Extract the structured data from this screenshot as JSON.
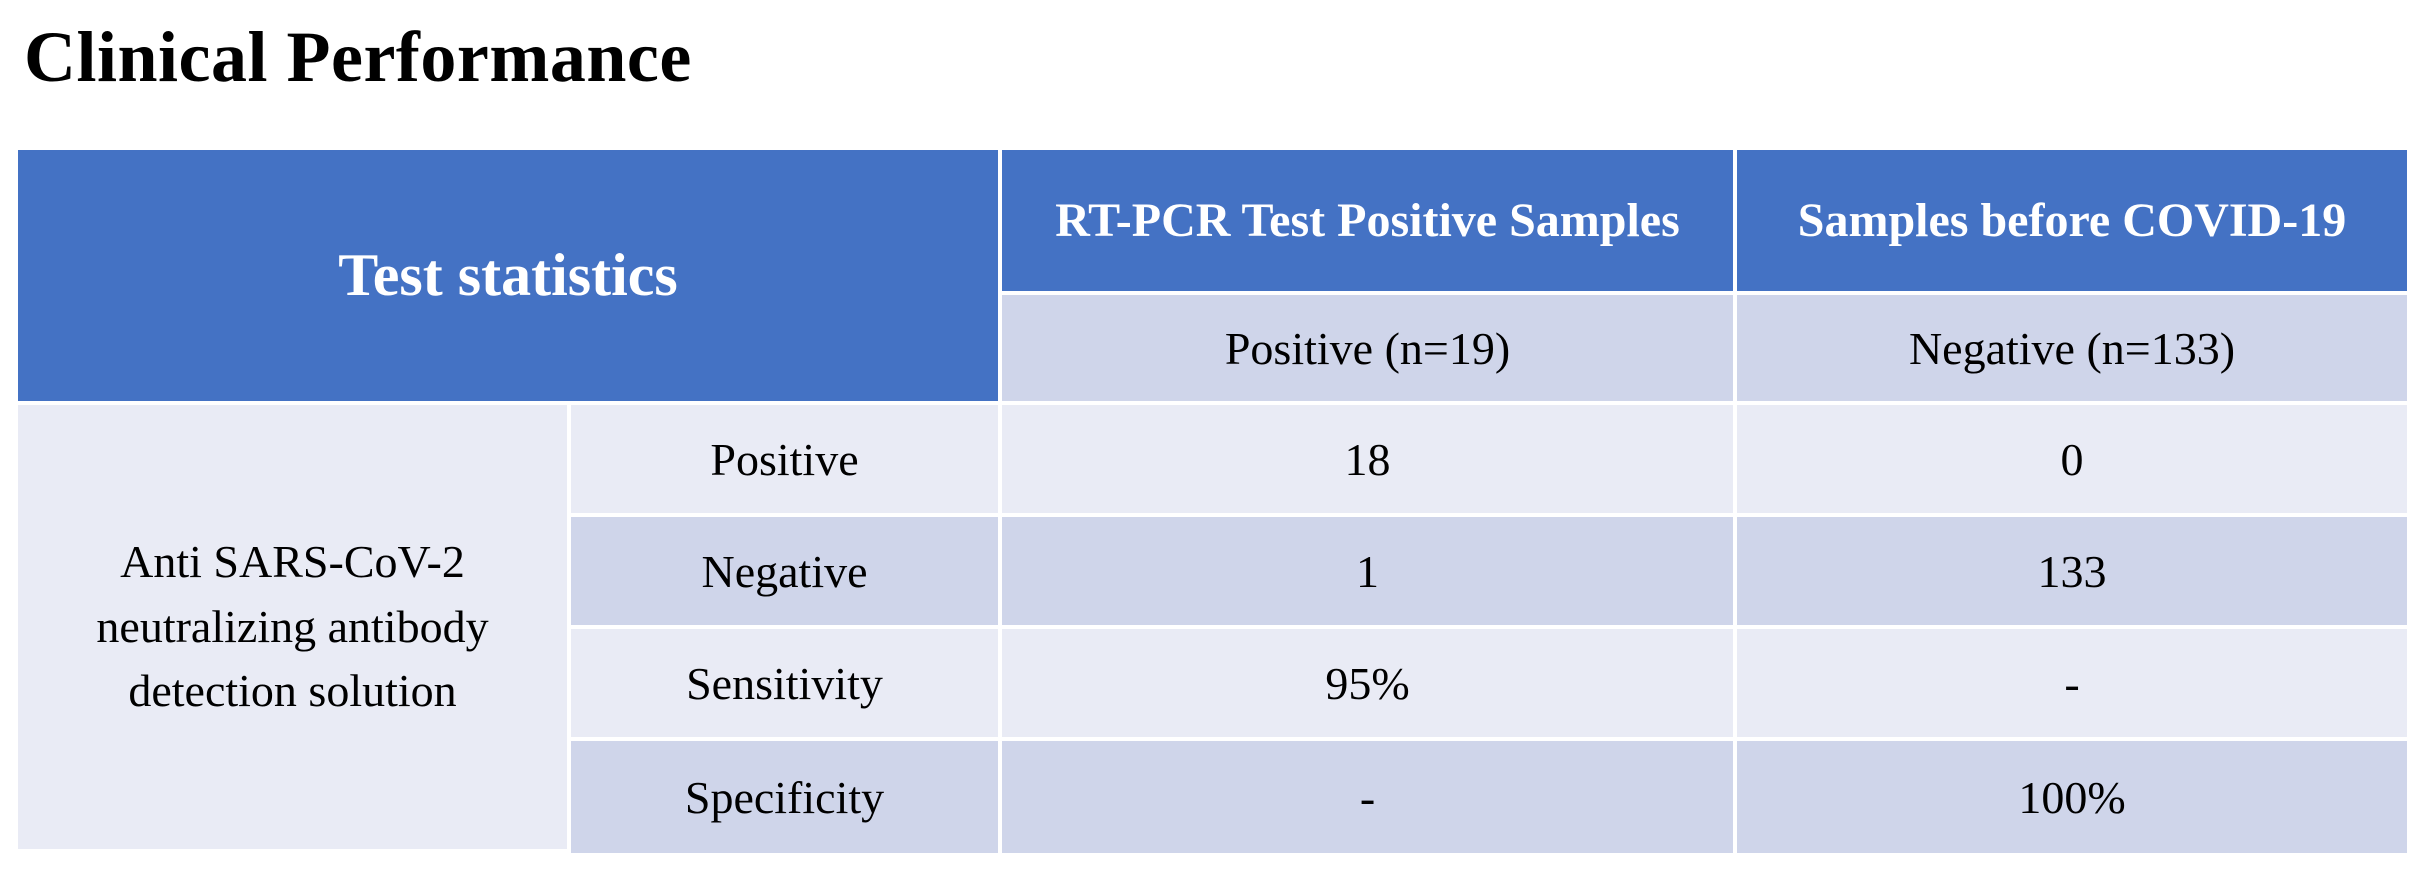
{
  "page": {
    "title": "Clinical Performance"
  },
  "table": {
    "header": {
      "main": "Test statistics",
      "col1": "RT-PCR Test Positive Samples",
      "col2": "Samples before COVID-19"
    },
    "subheader": {
      "col1": "Positive (n=19)",
      "col2": "Negative (n=133)"
    },
    "row_group_label": "Anti SARS-CoV-2 neutralizing antibody detection solution",
    "rows": [
      {
        "label": "Positive",
        "col1": "18",
        "col2": "0"
      },
      {
        "label": "Negative",
        "col1": "1",
        "col2": "133"
      },
      {
        "label": "Sensitivity",
        "col1": "95%",
        "col2": "-"
      },
      {
        "label": "Specificity",
        "col1": "-",
        "col2": "100%"
      }
    ]
  },
  "colors": {
    "header_bg": "#4472c4",
    "subheader_bg": "#cfd5ea",
    "row_light": "#e9ebf5",
    "row_dark": "#cfd5ea"
  }
}
